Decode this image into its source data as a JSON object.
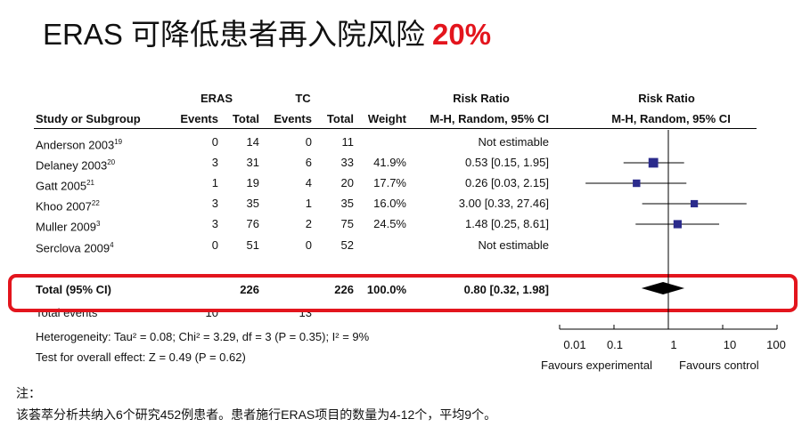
{
  "title": {
    "text": "ERAS 可降低患者再入院风险",
    "highlight": "20%"
  },
  "chart_data": {
    "type": "table",
    "header": {
      "group_eras": "ERAS",
      "group_tc": "TC",
      "study": "Study or Subgroup",
      "events1": "Events",
      "total1": "Total",
      "events2": "Events",
      "total2": "Total",
      "weight": "Weight",
      "rr_title": "Risk Ratio",
      "rr_method": "M-H, Random, 95% CI",
      "plot_title": "Risk Ratio",
      "plot_method": "M-H, Random, 95% CI"
    },
    "rows": [
      {
        "study": "Anderson 2003",
        "ref": "19",
        "e1": "0",
        "t1": "14",
        "e2": "0",
        "t2": "11",
        "weight": "",
        "ci_text": "Not estimable",
        "rr": null,
        "lo": null,
        "hi": null
      },
      {
        "study": "Delaney 2003",
        "ref": "20",
        "e1": "3",
        "t1": "31",
        "e2": "6",
        "t2": "33",
        "weight": "41.9%",
        "ci_text": "0.53 [0.15, 1.95]",
        "rr": 0.53,
        "lo": 0.15,
        "hi": 1.95,
        "w": 41.9
      },
      {
        "study": "Gatt 2005",
        "ref": "21",
        "e1": "1",
        "t1": "19",
        "e2": "4",
        "t2": "20",
        "weight": "17.7%",
        "ci_text": "0.26 [0.03, 2.15]",
        "rr": 0.26,
        "lo": 0.03,
        "hi": 2.15,
        "w": 17.7
      },
      {
        "study": "Khoo 2007",
        "ref": "22",
        "e1": "3",
        "t1": "35",
        "e2": "1",
        "t2": "35",
        "weight": "16.0%",
        "ci_text": "3.00 [0.33, 27.46]",
        "rr": 3.0,
        "lo": 0.33,
        "hi": 27.46,
        "w": 16.0
      },
      {
        "study": "Muller 2009",
        "ref": "3",
        "e1": "3",
        "t1": "76",
        "e2": "2",
        "t2": "75",
        "weight": "24.5%",
        "ci_text": "1.48 [0.25, 8.61]",
        "rr": 1.48,
        "lo": 0.25,
        "hi": 8.61,
        "w": 24.5
      },
      {
        "study": "Serclova 2009",
        "ref": "4",
        "e1": "0",
        "t1": "51",
        "e2": "0",
        "t2": "52",
        "weight": "",
        "ci_text": "Not estimable",
        "rr": null,
        "lo": null,
        "hi": null
      }
    ],
    "total": {
      "label": "Total (95% CI)",
      "t1": "226",
      "t2": "226",
      "weight": "100.0%",
      "ci_text": "0.80 [0.32, 1.98]",
      "rr": 0.8,
      "lo": 0.32,
      "hi": 1.98
    },
    "total_events": {
      "label": "Total events",
      "e1": "10",
      "e2": "13"
    },
    "heterogeneity": "Heterogeneity: Tau² = 0.08; Chi² = 3.29, df = 3 (P = 0.35); I² = 9%",
    "overall_effect": "Test for overall effect: Z = 0.49 (P = 0.62)",
    "x_axis": {
      "scale": "log",
      "range": [
        0.01,
        100
      ],
      "ticks": [
        "0.01",
        "0.1",
        "1",
        "10",
        "100"
      ]
    },
    "favours_left": "Favours experimental",
    "favours_right": "Favours control"
  },
  "note": {
    "label": "注：",
    "text": "该荟萃分析共纳入6个研究452例患者。患者施行ERAS项目的数量为4-12个，平均9个。"
  },
  "colors": {
    "highlight": "#e3151d",
    "marker": "#2b2b8c"
  }
}
